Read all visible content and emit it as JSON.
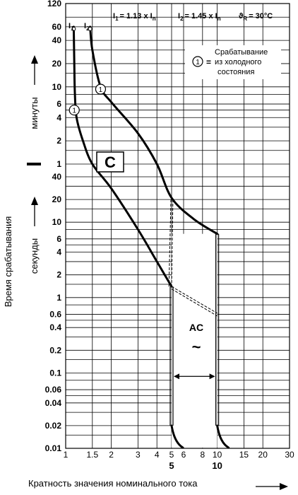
{
  "chart_data": {
    "type": "line",
    "xlabel": "Кратность значения номинального тока",
    "ylabel": "Время срабатывания",
    "y_unit_minutes": "минуты",
    "y_unit_seconds": "секунды",
    "xscale": "log",
    "yscale": "log",
    "xlim": [
      1,
      30
    ],
    "x_ticks": [
      "1",
      "1.5",
      "2",
      "3",
      "4",
      "5",
      "6",
      "8",
      "10",
      "15",
      "20",
      "30"
    ],
    "x_ticks_bold": [
      "5",
      "10"
    ],
    "y_ticks_minutes": [
      "120",
      "60",
      "40",
      "20",
      "10",
      "6",
      "4",
      "2",
      "1"
    ],
    "y_ticks_seconds": [
      "40",
      "20",
      "10",
      "6",
      "4",
      "2",
      "1",
      "0.6",
      "0.4",
      "0.2",
      "0.1",
      "0.06",
      "0.04",
      "0.02",
      "0.01"
    ],
    "grid": true,
    "header": {
      "i1_label": "I",
      "i1_sub": "1",
      "i1_formula": "= 1.13 x I",
      "i1_formula_sub": "n",
      "i2_label": "I",
      "i2_sub": "2",
      "i2_formula": "= 1.45 x I",
      "i2_formula_sub": "n",
      "temp_symbol": "ϑ",
      "temp_sub": "R",
      "temp_value": "= 30°C"
    },
    "note": {
      "marker": "1",
      "eq": "=",
      "lines": [
        "Срабатывание",
        "из холодного",
        "состояния"
      ]
    },
    "curve_type_label": "C",
    "ac_label": "AC",
    "ac_symbol": "~",
    "marker_label": "1",
    "series": [
      {
        "label_x": "1.13",
        "points": [
          [
            1.13,
            3600
          ],
          [
            1.14,
            1200
          ],
          [
            1.15,
            500
          ],
          [
            1.18,
            240
          ],
          [
            1.3,
            120
          ],
          [
            1.5,
            60
          ],
          [
            2,
            28
          ],
          [
            3,
            8
          ],
          [
            4,
            3
          ],
          [
            5,
            1.4
          ]
        ]
      },
      {
        "label_x": "1.45",
        "points": [
          [
            1.45,
            3600
          ],
          [
            1.5,
            1800
          ],
          [
            1.7,
            600
          ],
          [
            2,
            380
          ],
          [
            3,
            150
          ],
          [
            4,
            60
          ],
          [
            5,
            21
          ],
          [
            7,
            11
          ],
          [
            10,
            7
          ]
        ]
      }
    ],
    "instant_region": {
      "x_min": 5,
      "x_max": 10,
      "y_min": 0.01,
      "y_max": 7
    }
  }
}
